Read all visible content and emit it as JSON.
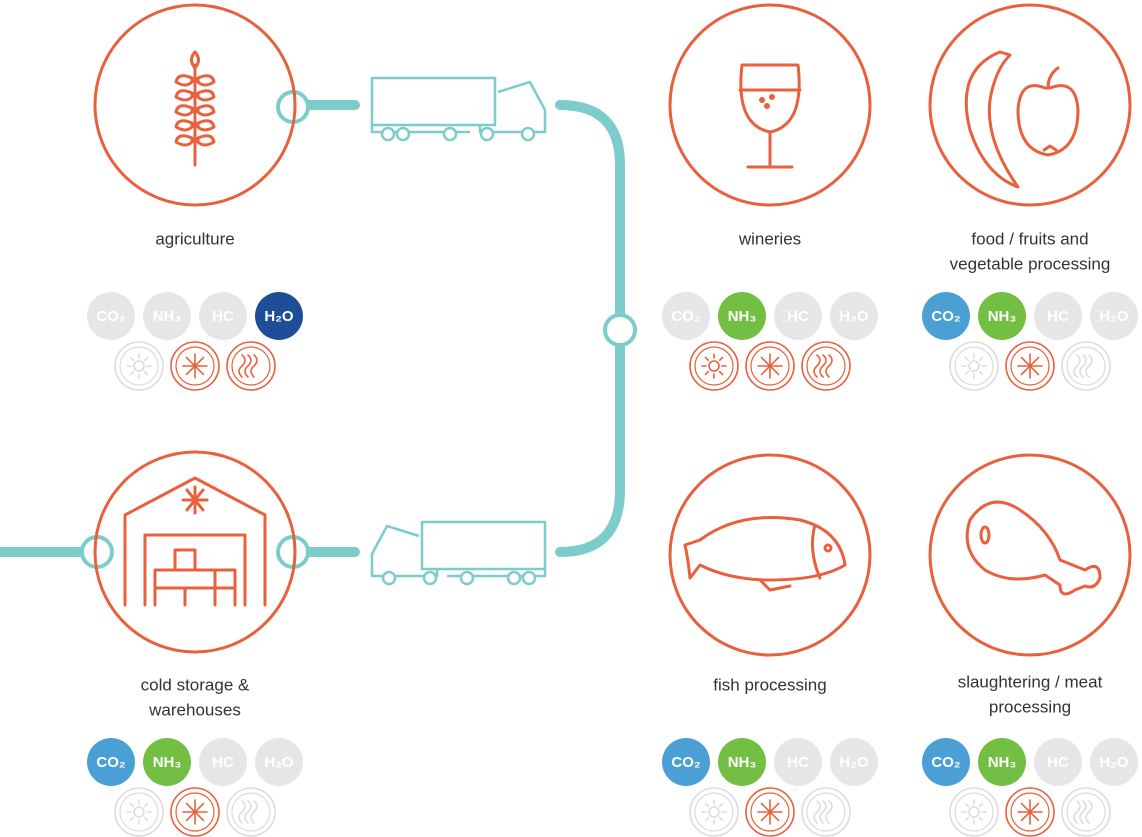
{
  "nodes": [
    {
      "label": [
        "agriculture"
      ],
      "refrigerants": [
        {
          "label": "CO₂",
          "active": false,
          "color": "#4a9fd5"
        },
        {
          "label": "NH₃",
          "active": false,
          "color": "#72bf44"
        },
        {
          "label": "HC",
          "active": false,
          "color": "#9aa0a6"
        },
        {
          "label": "H₂O",
          "active": true,
          "color": "#1f4e99"
        }
      ],
      "modes": [
        {
          "active": false
        },
        {
          "active": true
        },
        {
          "active": true
        }
      ]
    },
    {
      "label": [
        "wineries"
      ],
      "refrigerants": [
        {
          "label": "CO₂",
          "active": false,
          "color": "#4a9fd5"
        },
        {
          "label": "NH₃",
          "active": true,
          "color": "#72bf44"
        },
        {
          "label": "HC",
          "active": false,
          "color": "#9aa0a6"
        },
        {
          "label": "H₂O",
          "active": false,
          "color": "#1f4e99"
        }
      ],
      "modes": [
        {
          "active": true
        },
        {
          "active": true
        },
        {
          "active": true
        }
      ]
    },
    {
      "label": [
        "food / fruits and",
        "vegetable processing"
      ],
      "refrigerants": [
        {
          "label": "CO₂",
          "active": true,
          "color": "#4a9fd5"
        },
        {
          "label": "NH₃",
          "active": true,
          "color": "#72bf44"
        },
        {
          "label": "HC",
          "active": false,
          "color": "#9aa0a6"
        },
        {
          "label": "H₂O",
          "active": false,
          "color": "#1f4e99"
        }
      ],
      "modes": [
        {
          "active": false
        },
        {
          "active": true
        },
        {
          "active": false
        }
      ]
    },
    {
      "label": [
        "cold storage &",
        "warehouses"
      ],
      "refrigerants": [
        {
          "label": "CO₂",
          "active": true,
          "color": "#4a9fd5"
        },
        {
          "label": "NH₃",
          "active": true,
          "color": "#72bf44"
        },
        {
          "label": "HC",
          "active": false,
          "color": "#9aa0a6"
        },
        {
          "label": "H₂O",
          "active": false,
          "color": "#1f4e99"
        }
      ],
      "modes": [
        {
          "active": false
        },
        {
          "active": true
        },
        {
          "active": false
        }
      ]
    },
    {
      "label": [
        "fish processing"
      ],
      "refrigerants": [
        {
          "label": "CO₂",
          "active": true,
          "color": "#4a9fd5"
        },
        {
          "label": "NH₃",
          "active": true,
          "color": "#72bf44"
        },
        {
          "label": "HC",
          "active": false,
          "color": "#9aa0a6"
        },
        {
          "label": "H₂O",
          "active": false,
          "color": "#1f4e99"
        }
      ],
      "modes": [
        {
          "active": false
        },
        {
          "active": true
        },
        {
          "active": false
        }
      ]
    },
    {
      "label": [
        "slaughtering / meat",
        "processing"
      ],
      "refrigerants": [
        {
          "label": "CO₂",
          "active": true,
          "color": "#4a9fd5"
        },
        {
          "label": "NH₃",
          "active": true,
          "color": "#72bf44"
        },
        {
          "label": "HC",
          "active": false,
          "color": "#9aa0a6"
        },
        {
          "label": "H₂O",
          "active": false,
          "color": "#1f4e99"
        }
      ],
      "modes": [
        {
          "active": false
        },
        {
          "active": true
        },
        {
          "active": false
        }
      ]
    }
  ]
}
